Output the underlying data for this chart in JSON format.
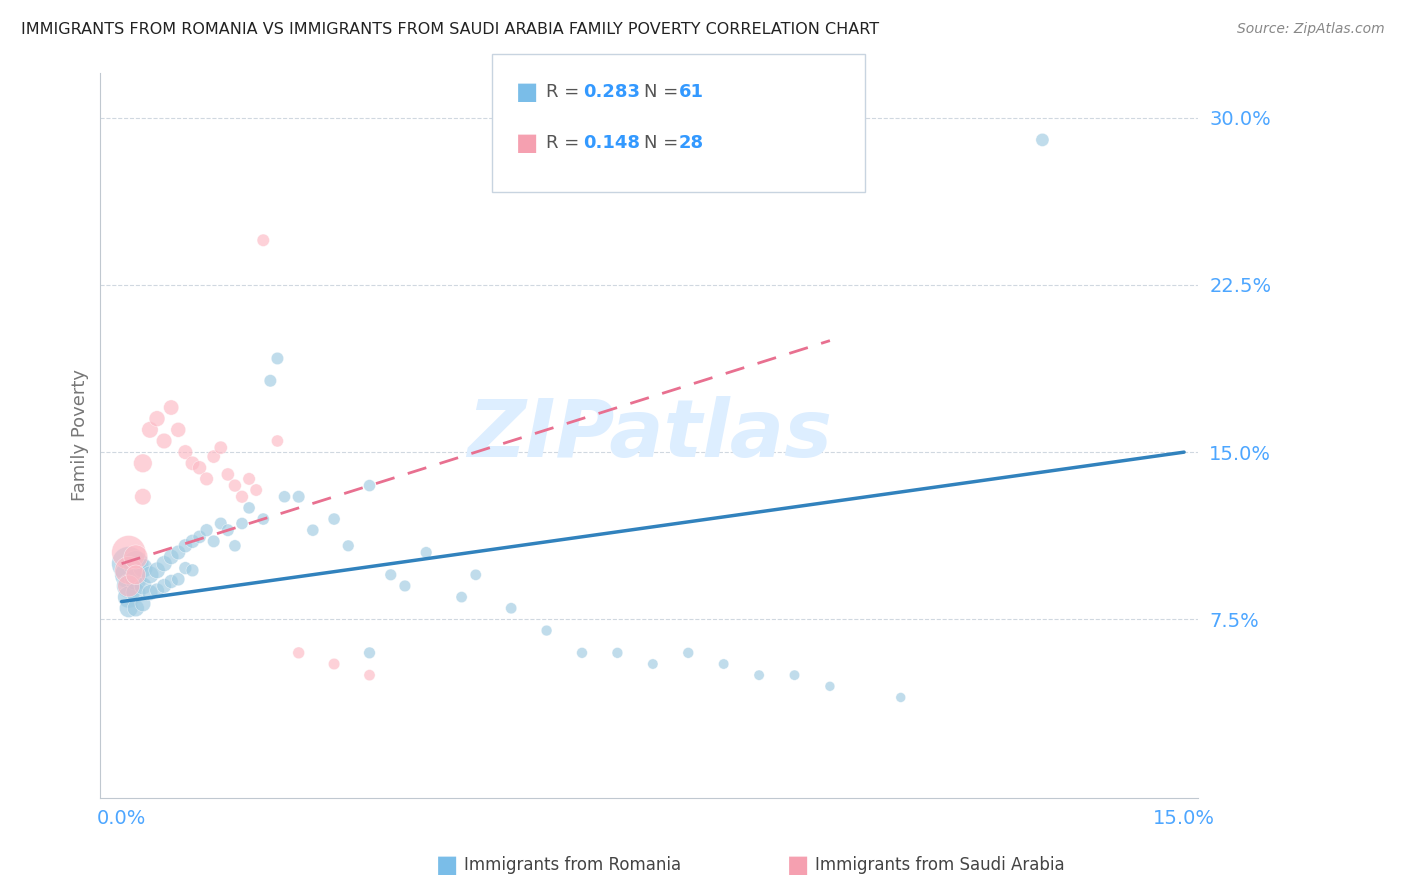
{
  "title": "IMMIGRANTS FROM ROMANIA VS IMMIGRANTS FROM SAUDI ARABIA FAMILY POVERTY CORRELATION CHART",
  "source": "Source: ZipAtlas.com",
  "ylabel": "Family Poverty",
  "xlim": [
    0.0,
    0.15
  ],
  "ylim": [
    0.0,
    0.32
  ],
  "yticks": [
    0.075,
    0.15,
    0.225,
    0.3
  ],
  "ytick_labels": [
    "7.5%",
    "15.0%",
    "22.5%",
    "30.0%"
  ],
  "xtick_vals": [
    0.0,
    0.15
  ],
  "xtick_labels": [
    "0.0%",
    "15.0%"
  ],
  "color_romania": "#9ecae1",
  "color_saudi": "#fcb9c4",
  "color_romania_line": "#3182bd",
  "color_saudi_line": "#e87090",
  "color_text_right": "#4da6ff",
  "background_color": "#ffffff",
  "watermark_color": "#ddeeff",
  "romania_x": [
    0.001,
    0.001,
    0.001,
    0.001,
    0.001,
    0.002,
    0.002,
    0.002,
    0.002,
    0.003,
    0.003,
    0.003,
    0.004,
    0.004,
    0.005,
    0.005,
    0.006,
    0.006,
    0.007,
    0.007,
    0.008,
    0.008,
    0.009,
    0.009,
    0.01,
    0.01,
    0.011,
    0.012,
    0.013,
    0.014,
    0.015,
    0.016,
    0.017,
    0.018,
    0.02,
    0.021,
    0.022,
    0.023,
    0.025,
    0.027,
    0.03,
    0.032,
    0.035,
    0.035,
    0.038,
    0.04,
    0.043,
    0.048,
    0.05,
    0.055,
    0.06,
    0.065,
    0.07,
    0.075,
    0.08,
    0.085,
    0.09,
    0.095,
    0.1,
    0.11,
    0.13
  ],
  "romania_y": [
    0.1,
    0.095,
    0.09,
    0.085,
    0.08,
    0.1,
    0.093,
    0.087,
    0.08,
    0.098,
    0.09,
    0.082,
    0.095,
    0.087,
    0.097,
    0.088,
    0.1,
    0.09,
    0.103,
    0.092,
    0.105,
    0.093,
    0.108,
    0.098,
    0.11,
    0.097,
    0.112,
    0.115,
    0.11,
    0.118,
    0.115,
    0.108,
    0.118,
    0.125,
    0.12,
    0.182,
    0.192,
    0.13,
    0.13,
    0.115,
    0.12,
    0.108,
    0.135,
    0.06,
    0.095,
    0.09,
    0.105,
    0.085,
    0.095,
    0.08,
    0.07,
    0.06,
    0.06,
    0.055,
    0.06,
    0.055,
    0.05,
    0.05,
    0.045,
    0.04,
    0.29
  ],
  "romania_sizes": [
    600,
    400,
    300,
    250,
    180,
    350,
    250,
    200,
    150,
    200,
    160,
    130,
    160,
    130,
    140,
    110,
    130,
    110,
    120,
    100,
    110,
    90,
    100,
    85,
    100,
    85,
    90,
    85,
    80,
    80,
    80,
    75,
    75,
    75,
    75,
    80,
    80,
    75,
    80,
    75,
    75,
    70,
    75,
    70,
    70,
    70,
    70,
    65,
    65,
    65,
    60,
    60,
    60,
    55,
    60,
    55,
    55,
    55,
    50,
    50,
    90
  ],
  "saudi_x": [
    0.001,
    0.001,
    0.001,
    0.002,
    0.002,
    0.003,
    0.003,
    0.004,
    0.005,
    0.006,
    0.007,
    0.008,
    0.009,
    0.01,
    0.011,
    0.012,
    0.013,
    0.014,
    0.015,
    0.016,
    0.017,
    0.018,
    0.019,
    0.02,
    0.022,
    0.025,
    0.03,
    0.035
  ],
  "saudi_y": [
    0.105,
    0.097,
    0.09,
    0.103,
    0.095,
    0.145,
    0.13,
    0.16,
    0.165,
    0.155,
    0.17,
    0.16,
    0.15,
    0.145,
    0.143,
    0.138,
    0.148,
    0.152,
    0.14,
    0.135,
    0.13,
    0.138,
    0.133,
    0.245,
    0.155,
    0.06,
    0.055,
    0.05
  ],
  "saudi_sizes": [
    600,
    400,
    250,
    300,
    200,
    180,
    140,
    140,
    130,
    125,
    120,
    115,
    110,
    105,
    100,
    95,
    90,
    90,
    88,
    85,
    83,
    80,
    78,
    80,
    75,
    72,
    68,
    65
  ],
  "rom_line_x0": 0.0,
  "rom_line_x1": 0.15,
  "rom_line_y0": 0.083,
  "rom_line_y1": 0.15,
  "sau_line_x0": 0.0,
  "sau_line_x1": 0.1,
  "sau_line_y0": 0.1,
  "sau_line_y1": 0.2
}
